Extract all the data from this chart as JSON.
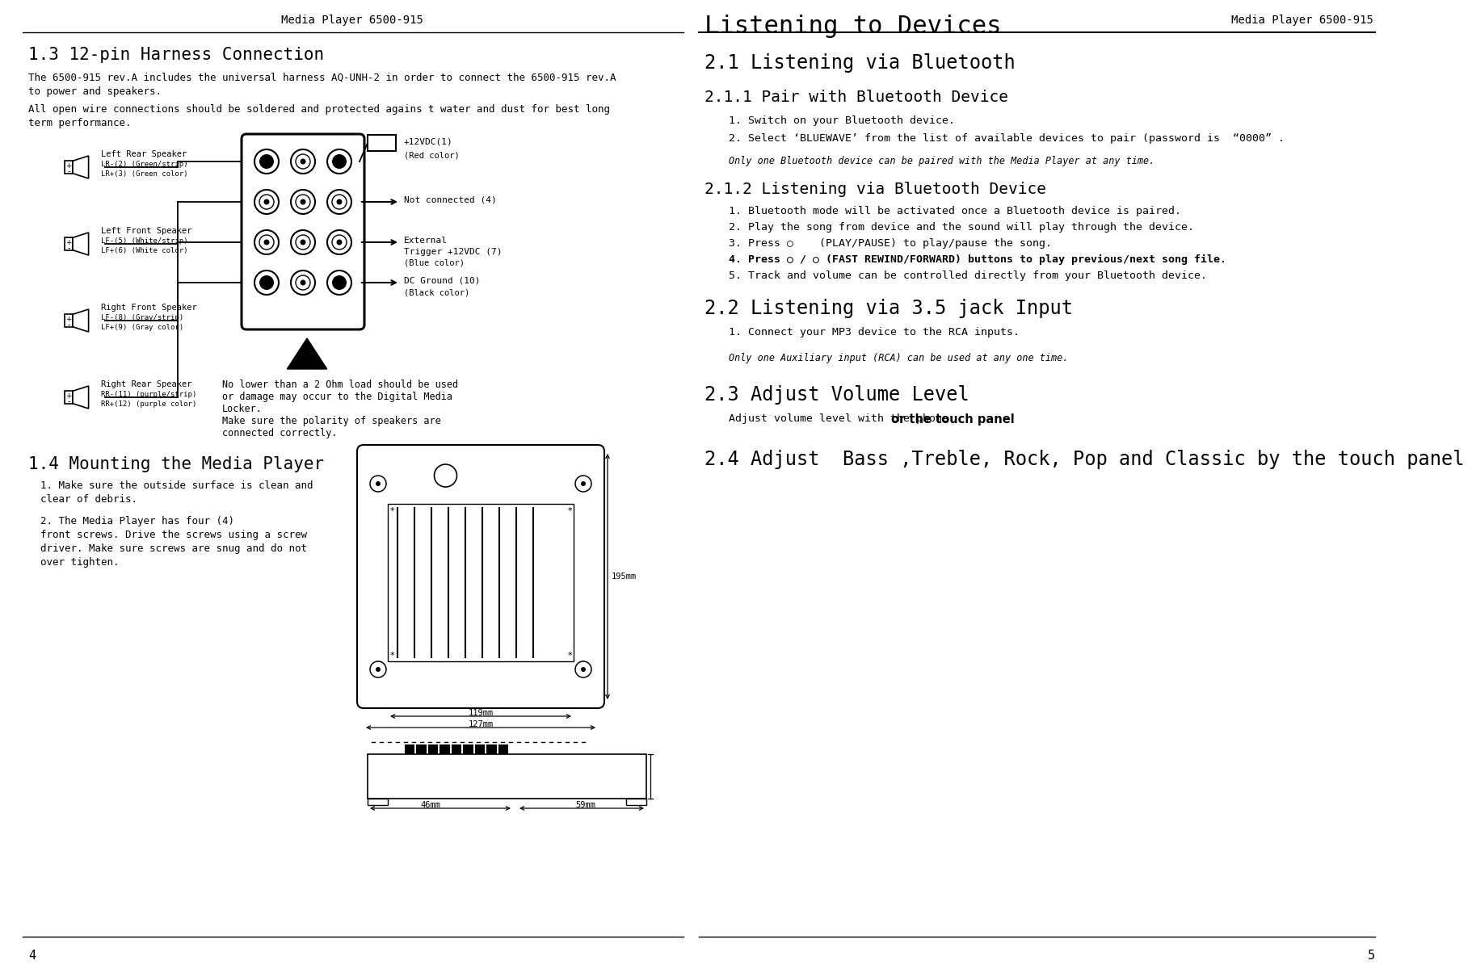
{
  "page_title_left": "Media Player 6500-915",
  "page_title_right": "Media Player 6500-915",
  "page_header_right": "Listening to Devices",
  "page_num_left": "4",
  "page_num_right": "5",
  "bg_color": "#ffffff",
  "left_col": {
    "section_1_title": "1.3 12-pin Harness Connection",
    "section_1_para1": "The 6500-915 rev.A includes the universal harness AQ-UNH-2 in order to connect the 6500-915 rev.A\nto power and speakers.",
    "section_1_para2": "All open wire connections should be soldered and protected agains t water and dust for best long\nterm performance.",
    "speaker_labels": [
      [
        "Left Rear Speaker",
        "LR-(2) (Green/strip)",
        "LR+(3) (Green color)"
      ],
      [
        "Left Front Speaker",
        "LF-(5) (White/strip)",
        "LF+(6) (White color)"
      ],
      [
        "Right Front Speaker",
        "LF-(8) (Gray/strip)",
        "LF+(9) (Gray color)"
      ],
      [
        "Right Rear Speaker",
        "RR-(11) (purple/strip)",
        "RR+(12) (purple color)"
      ]
    ],
    "right_labels": [
      [
        "+12VDC(1)",
        "(Red color)"
      ],
      [
        "Not connected (4)",
        ""
      ],
      [
        "External\nTrigger +12VDC (7)",
        "(Blue color)"
      ],
      [
        "DC Ground (10)",
        "(Black color)"
      ]
    ],
    "warn_lines": [
      "No lower than a 2 Ohm load should be used",
      "or damage may occur to the Digital Media",
      "Locker.",
      "Make sure the polarity of speakers are",
      "connected correctly."
    ],
    "section_2_title": "1.4 Mounting the Media Player",
    "section_2_para1": "1. Make sure the outside surface is clean and\nclear of debris.",
    "section_2_para2": "2. The Media Player has four (4)\nfront screws. Drive the screws using a screw\ndriver. Make sure screws are snug and do not\nover tighten."
  },
  "right_col": {
    "section_1_title": "2.1 Listening via Bluetooth",
    "section_2_title": "2.1.1 Pair with Bluetooth Device",
    "section_2_items": [
      "1. Switch on your Bluetooth device.",
      "2. Select ‘BLUEWAVE’ from the list of available devices to pair (password is  “0000” ."
    ],
    "section_2_note": "Only one Bluetooth device can be paired with the Media Player at any time.",
    "section_3_title": "2.1.2 Listening via Bluetooth Device",
    "section_3_items": [
      "1. Bluetooth mode will be activated once a Bluetooth device is paired.",
      "2. Play the song from device and the sound will play through the device.",
      "3. Press ○    (PLAY/PAUSE) to play/pause the song.",
      "4. Press ○ / ○ (FAST REWIND/FORWARD) buttons to play previous/next song file.",
      "5. Track and volume can be controlled directly from your Bluetooth device."
    ],
    "section_4_title": "2.2 Listening via 3.5 jack Input",
    "section_4_items": [
      "1. Connect your MP3 device to the RCA inputs."
    ],
    "section_4_note": "Only one Auxiliary input (RCA) can be used at any one time.",
    "section_5_title": "2.3 Adjust Volume Level",
    "section_5_para_mono": "Adjust volume level with the phone ",
    "section_5_para_bold": "or the touch panel",
    "section_6_title": "2.4 Adjust  Bass ,Treble, Rock, Pop and Classic by the touch panel"
  }
}
